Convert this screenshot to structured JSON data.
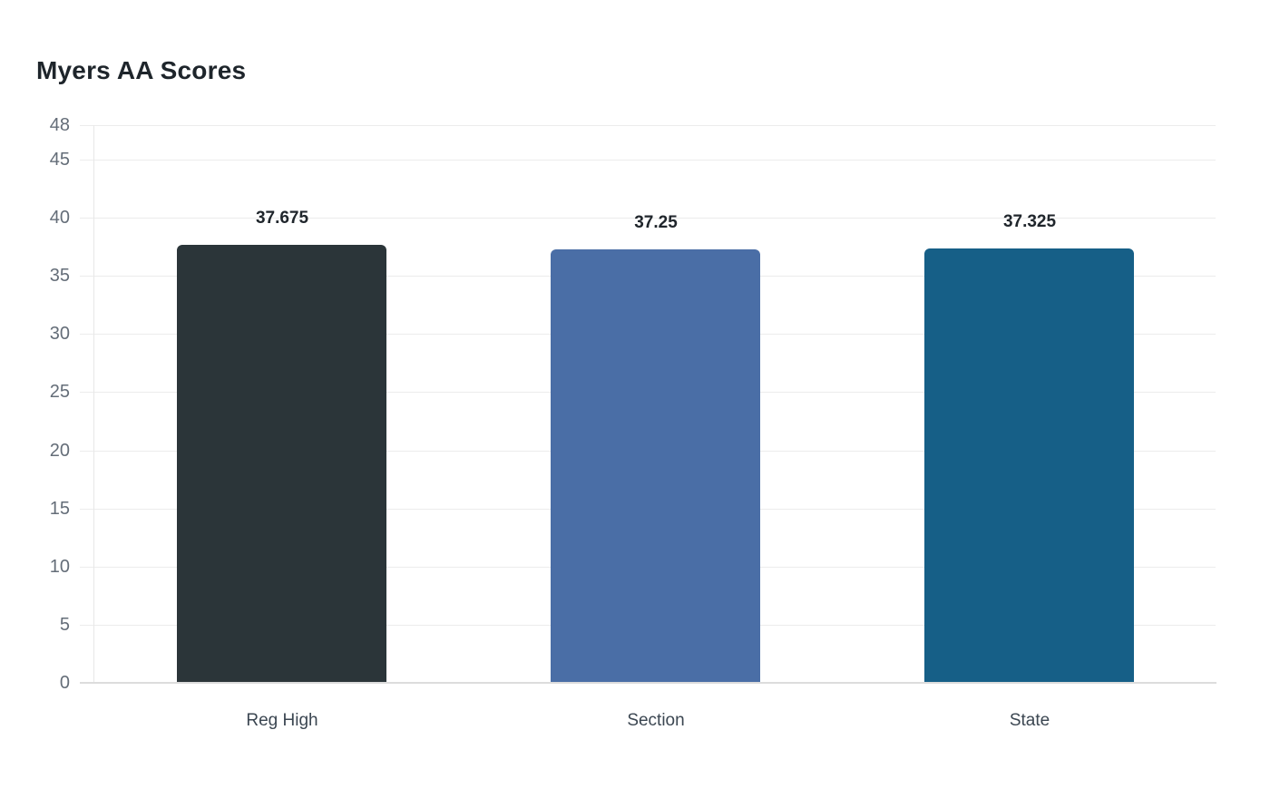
{
  "title": "Myers AA Scores",
  "chart_data": {
    "type": "bar",
    "title": "Myers AA Scores",
    "categories": [
      "Reg High",
      "Section",
      "State"
    ],
    "values": [
      37.675,
      37.25,
      37.325
    ],
    "value_labels": [
      "37.675",
      "37.25",
      "37.325"
    ],
    "bar_colors": [
      "#2b3539",
      "#4a6ea6",
      "#165f87"
    ],
    "xlabel": "",
    "ylabel": "",
    "ylim": [
      0,
      48
    ],
    "yticks": [
      0,
      5,
      10,
      15,
      20,
      25,
      30,
      35,
      40,
      45,
      48
    ],
    "grid": true,
    "legend": false,
    "colors": {
      "background": "#ffffff",
      "title_text": "#1e252b",
      "grid_line": "#ececec",
      "axis_baseline": "#dcdcdc",
      "y_axis_line": "#e8e8e8",
      "tick_label_text": "#646d78",
      "category_label_text": "#3b4651",
      "value_label_text": "#20262c"
    }
  }
}
